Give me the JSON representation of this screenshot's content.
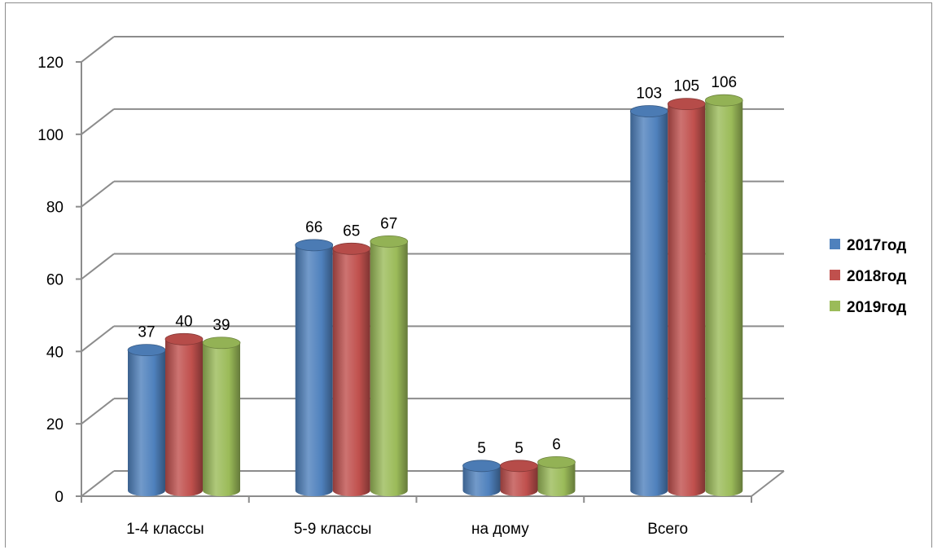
{
  "chart_data": {
    "type": "bar",
    "categories": [
      "1-4 классы",
      "5-9 классы",
      "на дому",
      "Всего"
    ],
    "series": [
      {
        "name": "2017год",
        "values": [
          37,
          66,
          5,
          103
        ],
        "color": "#4f81bd"
      },
      {
        "name": "2018год",
        "values": [
          40,
          65,
          5,
          105
        ],
        "color": "#c0504d"
      },
      {
        "name": "2019год",
        "values": [
          39,
          67,
          6,
          106
        ],
        "color": "#9bbb59"
      }
    ],
    "yticks": [
      "0",
      "20",
      "40",
      "60",
      "80",
      "100",
      "120"
    ],
    "ylim": [
      0,
      120
    ],
    "grid": true,
    "legend_position": "right",
    "style": "3d-cylinder"
  }
}
